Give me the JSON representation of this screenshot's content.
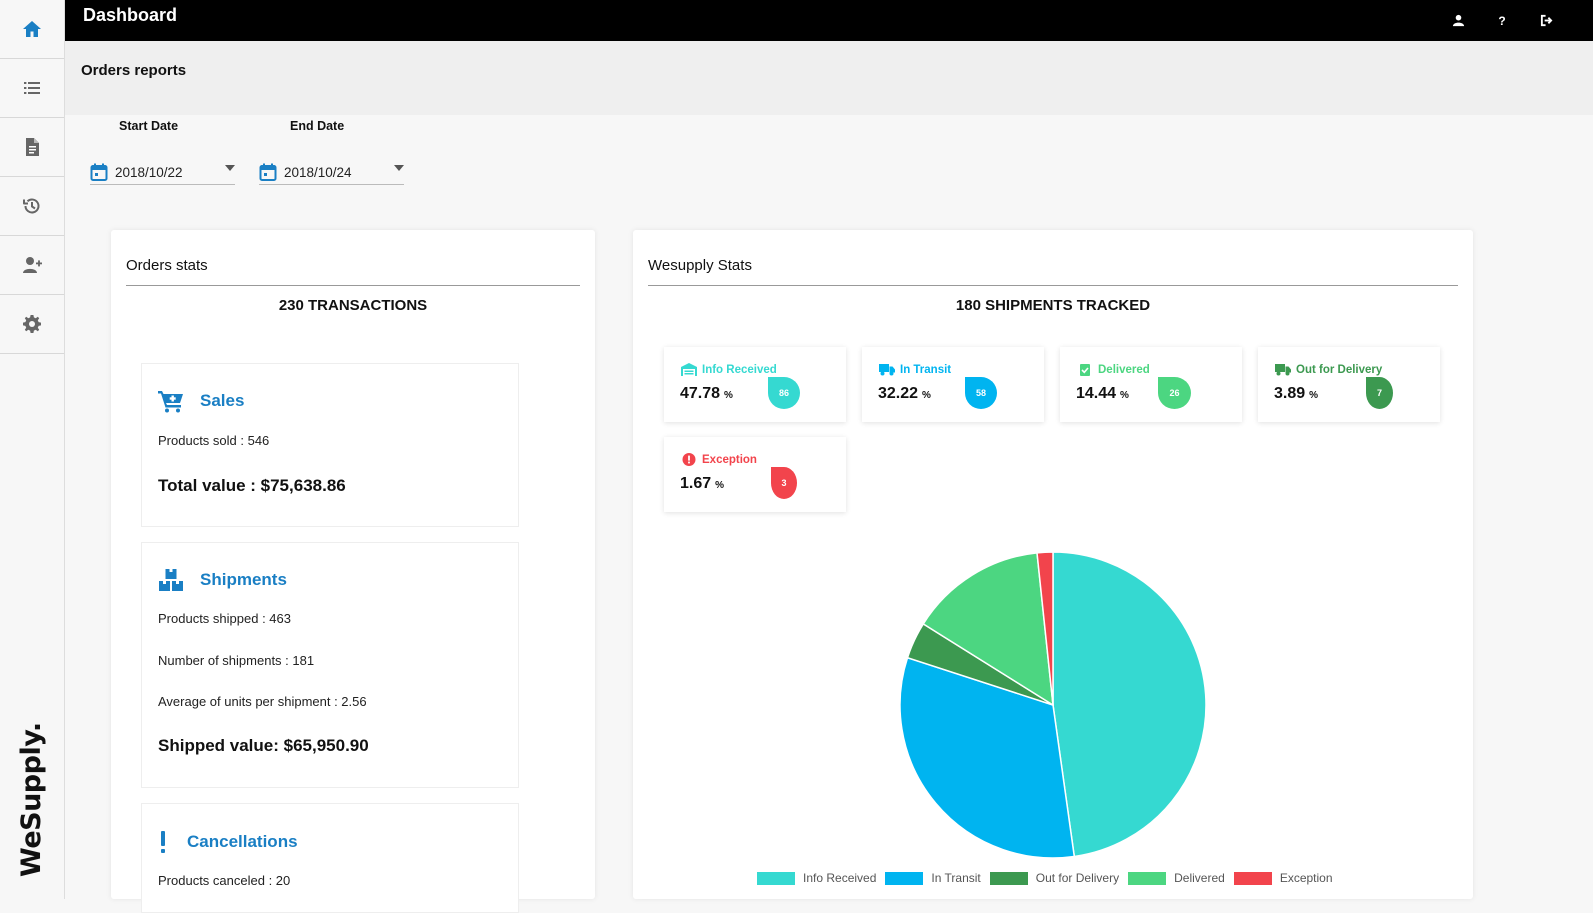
{
  "app": {
    "title": "Dashboard",
    "brand": "WeSupply."
  },
  "sidebar": {
    "items": [
      {
        "icon": "home-icon",
        "active": true
      },
      {
        "icon": "list-icon"
      },
      {
        "icon": "document-icon"
      },
      {
        "icon": "history-icon"
      },
      {
        "icon": "add-user-icon"
      },
      {
        "icon": "gear-icon"
      }
    ]
  },
  "topbar": {
    "icons": [
      "user-icon",
      "help-icon",
      "logout-icon"
    ],
    "help_label": "?"
  },
  "subheader": {
    "title": "Orders reports"
  },
  "filters": {
    "start_label": "Start Date",
    "start_value": "2018/10/22",
    "end_label": "End Date",
    "end_value": "2018/10/24"
  },
  "orders": {
    "title": "Orders stats",
    "heading": "230 TRANSACTIONS",
    "sales": {
      "title": "Sales",
      "line1": "Products sold : 546",
      "total": "Total value : $75,638.86"
    },
    "shipments": {
      "title": "Shipments",
      "line1": "Products shipped : 463",
      "line2": "Number of shipments : 181",
      "line3": "Average of units per shipment : 2.56",
      "total": "Shipped value: $65,950.90"
    },
    "cancellations": {
      "title": "Cancellations",
      "line1": "Products canceled : 20"
    }
  },
  "wesupply": {
    "title": "Wesupply Stats",
    "heading": "180 SHIPMENTS TRACKED",
    "tiles": [
      {
        "label": "Info Received",
        "pct": "47.78",
        "unit": "%",
        "count": "86",
        "color": "#35d9d1"
      },
      {
        "label": "In Transit",
        "pct": "32.22",
        "unit": "%",
        "count": "58",
        "color": "#00b4f0"
      },
      {
        "label": "Delivered",
        "pct": "14.44",
        "unit": "%",
        "count": "26",
        "color": "#4cd681"
      },
      {
        "label": "Out for Delivery",
        "pct": "3.89",
        "unit": "%",
        "count": "7",
        "color": "#3c9950"
      },
      {
        "label": "Exception",
        "pct": "1.67",
        "unit": "%",
        "count": "3",
        "color": "#f2444c"
      }
    ]
  },
  "chart_data": {
    "type": "pie",
    "categories": [
      "Info Received",
      "In Transit",
      "Out for Delivery",
      "Delivered",
      "Exception"
    ],
    "values": [
      86,
      58,
      7,
      26,
      3
    ],
    "colors": [
      "#35d9d1",
      "#00b4f0",
      "#3c9950",
      "#4cd681",
      "#f2444c"
    ],
    "legend_position": "bottom"
  }
}
